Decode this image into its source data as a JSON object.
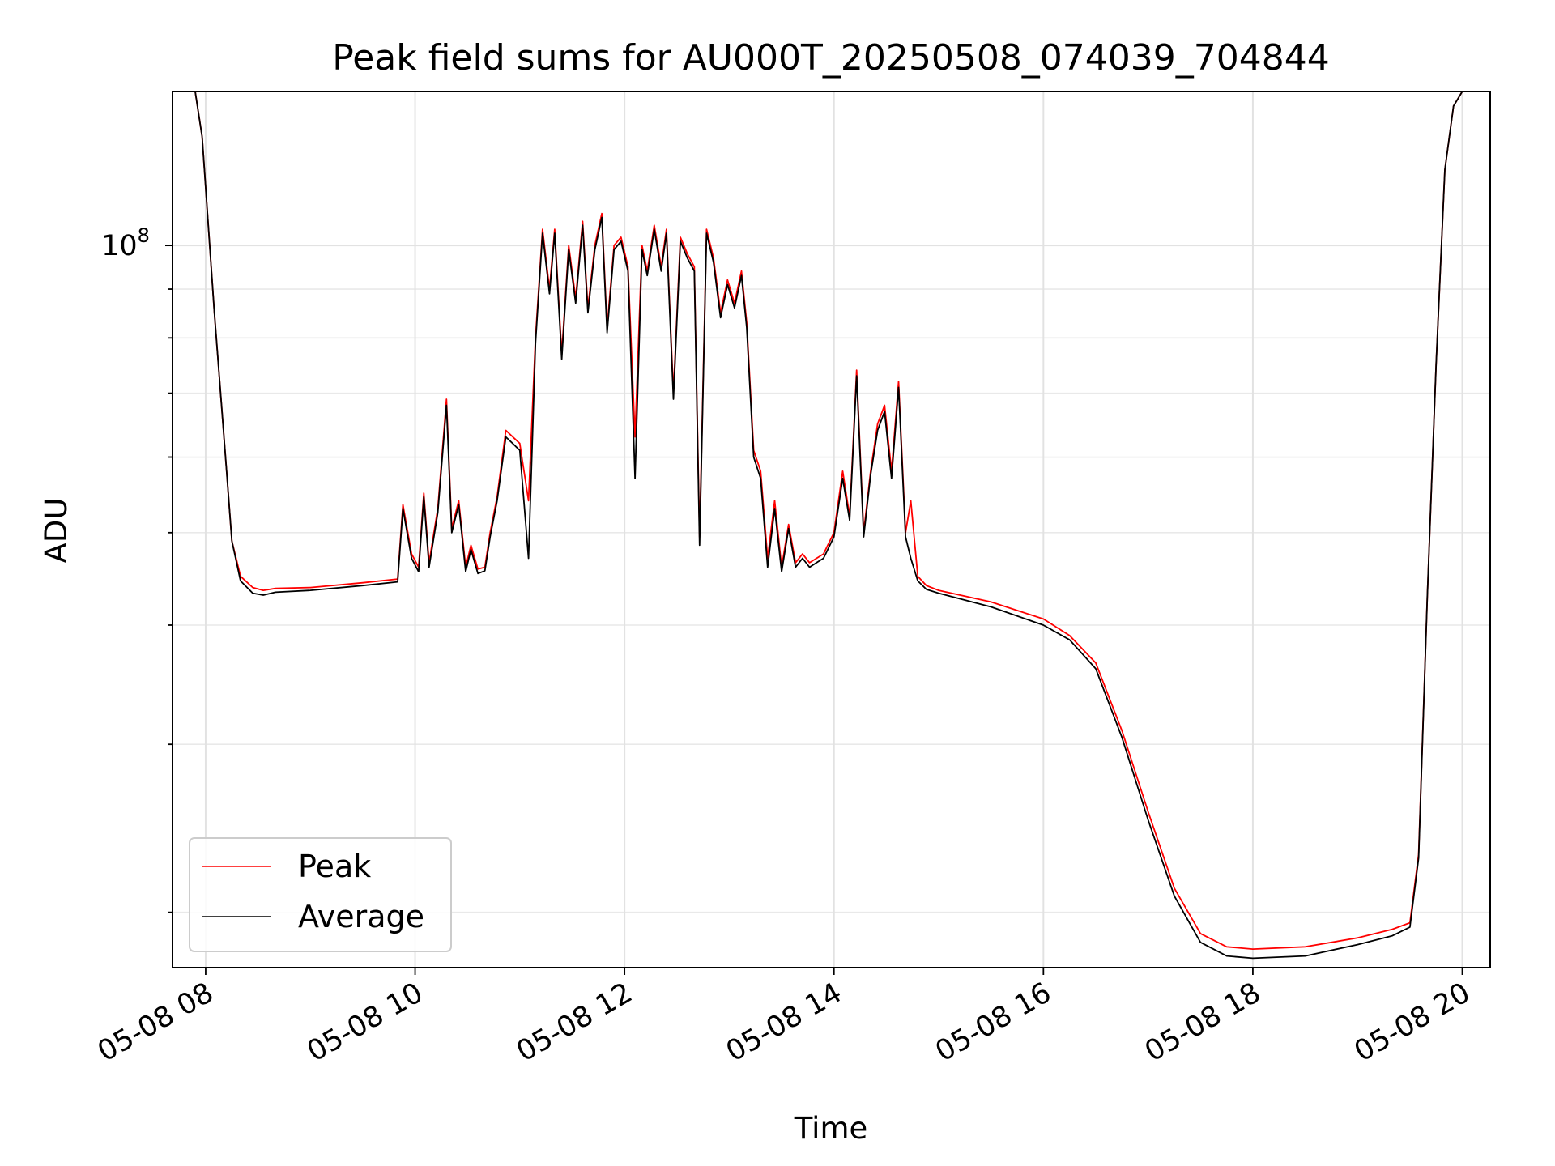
{
  "chart_data": {
    "type": "line",
    "title": "Peak field sums for AU000T_20250508_074039_704844",
    "xlabel": "Time",
    "ylabel": "ADU",
    "y_scale": "log",
    "ylim": [
      17500000,
      145000000
    ],
    "xlim": [
      "2025-05-08 07:41",
      "2025-05-08 20:16"
    ],
    "x_ticks": [
      {
        "t": "2025-05-08 08:00",
        "label": "05-08 08"
      },
      {
        "t": "2025-05-08 10:00",
        "label": "05-08 10"
      },
      {
        "t": "2025-05-08 12:00",
        "label": "05-08 12"
      },
      {
        "t": "2025-05-08 14:00",
        "label": "05-08 14"
      },
      {
        "t": "2025-05-08 16:00",
        "label": "05-08 16"
      },
      {
        "t": "2025-05-08 18:00",
        "label": "05-08 18"
      },
      {
        "t": "2025-05-08 20:00",
        "label": "05-08 20"
      }
    ],
    "y_major_ticks": [
      {
        "value": 100000000,
        "base": "10",
        "exponent": "8"
      }
    ],
    "y_minor_ticks": [
      20000000,
      30000000,
      40000000,
      50000000,
      60000000,
      70000000,
      80000000,
      90000000,
      200000000
    ],
    "grid": true,
    "legend": {
      "position": "lower-left"
    },
    "series": [
      {
        "name": "Peak",
        "color": "#ff0000",
        "x": [
          "2025-05-08 07:41",
          "2025-05-08 07:54",
          "2025-05-08 07:58",
          "2025-05-08 08:05",
          "2025-05-08 08:12",
          "2025-05-08 08:15",
          "2025-05-08 08:20",
          "2025-05-08 08:27",
          "2025-05-08 08:33",
          "2025-05-08 08:40",
          "2025-05-08 09:00",
          "2025-05-08 09:30",
          "2025-05-08 09:50",
          "2025-05-08 09:53",
          "2025-05-08 09:58",
          "2025-05-08 10:02",
          "2025-05-08 10:05",
          "2025-05-08 10:08",
          "2025-05-08 10:13",
          "2025-05-08 10:18",
          "2025-05-08 10:21",
          "2025-05-08 10:25",
          "2025-05-08 10:29",
          "2025-05-08 10:32",
          "2025-05-08 10:36",
          "2025-05-08 10:40",
          "2025-05-08 10:43",
          "2025-05-08 10:47",
          "2025-05-08 10:52",
          "2025-05-08 11:00",
          "2025-05-08 11:05",
          "2025-05-08 11:09",
          "2025-05-08 11:13",
          "2025-05-08 11:17",
          "2025-05-08 11:20",
          "2025-05-08 11:24",
          "2025-05-08 11:28",
          "2025-05-08 11:32",
          "2025-05-08 11:36",
          "2025-05-08 11:39",
          "2025-05-08 11:43",
          "2025-05-08 11:47",
          "2025-05-08 11:50",
          "2025-05-08 11:54",
          "2025-05-08 11:58",
          "2025-05-08 12:02",
          "2025-05-08 12:06",
          "2025-05-08 12:10",
          "2025-05-08 12:13",
          "2025-05-08 12:17",
          "2025-05-08 12:21",
          "2025-05-08 12:24",
          "2025-05-08 12:28",
          "2025-05-08 12:32",
          "2025-05-08 12:36",
          "2025-05-08 12:40",
          "2025-05-08 12:43",
          "2025-05-08 12:47",
          "2025-05-08 12:51",
          "2025-05-08 12:55",
          "2025-05-08 12:59",
          "2025-05-08 13:03",
          "2025-05-08 13:07",
          "2025-05-08 13:10",
          "2025-05-08 13:14",
          "2025-05-08 13:18",
          "2025-05-08 13:22",
          "2025-05-08 13:26",
          "2025-05-08 13:30",
          "2025-05-08 13:34",
          "2025-05-08 13:38",
          "2025-05-08 13:42",
          "2025-05-08 13:46",
          "2025-05-08 13:50",
          "2025-05-08 13:54",
          "2025-05-08 14:00",
          "2025-05-08 14:05",
          "2025-05-08 14:09",
          "2025-05-08 14:13",
          "2025-05-08 14:17",
          "2025-05-08 14:21",
          "2025-05-08 14:25",
          "2025-05-08 14:29",
          "2025-05-08 14:33",
          "2025-05-08 14:37",
          "2025-05-08 14:41",
          "2025-05-08 14:44",
          "2025-05-08 14:48",
          "2025-05-08 14:53",
          "2025-05-08 15:00",
          "2025-05-08 15:30",
          "2025-05-08 16:00",
          "2025-05-08 16:15",
          "2025-05-08 16:30",
          "2025-05-08 16:45",
          "2025-05-08 17:00",
          "2025-05-08 17:15",
          "2025-05-08 17:30",
          "2025-05-08 17:45",
          "2025-05-08 18:00",
          "2025-05-08 18:30",
          "2025-05-08 19:00",
          "2025-05-08 19:20",
          "2025-05-08 19:30",
          "2025-05-08 19:35",
          "2025-05-08 19:40",
          "2025-05-08 19:45",
          "2025-05-08 19:50",
          "2025-05-08 19:55",
          "2025-05-08 20:00",
          "2025-05-08 20:05",
          "2025-05-08 20:16"
        ],
        "y": [
          145000000,
          145000000,
          130000000,
          85000000,
          58000000,
          49000000,
          45000000,
          43800000,
          43500000,
          43700000,
          43800000,
          44300000,
          44700000,
          53500000,
          47500000,
          46000000,
          55000000,
          46500000,
          53000000,
          69000000,
          50500000,
          54000000,
          46000000,
          48500000,
          45800000,
          46000000,
          50000000,
          54500000,
          64000000,
          62000000,
          54000000,
          80000000,
          104000000,
          90000000,
          104000000,
          77000000,
          100000000,
          88000000,
          106000000,
          86000000,
          100000000,
          108000000,
          82000000,
          100000000,
          102000000,
          95000000,
          63000000,
          100000000,
          94000000,
          105000000,
          95000000,
          104000000,
          70000000,
          102000000,
          98000000,
          95000000,
          49500000,
          104000000,
          97000000,
          85000000,
          92000000,
          87000000,
          94000000,
          83000000,
          61000000,
          58000000,
          47000000,
          54000000,
          46000000,
          51000000,
          46500000,
          47500000,
          46500000,
          47000000,
          47500000,
          50000000,
          58000000,
          52000000,
          74000000,
          50000000,
          58000000,
          65000000,
          68000000,
          58000000,
          72000000,
          50000000,
          54000000,
          45000000,
          44000000,
          43500000,
          42300000,
          40600000,
          39000000,
          36500000,
          31000000,
          25500000,
          21200000,
          19000000,
          18400000,
          18300000,
          18400000,
          18800000,
          19200000,
          19500000,
          23000000,
          43000000,
          75000000,
          120000000,
          140000000,
          145000000,
          145000000,
          145000000
        ]
      },
      {
        "name": "Average",
        "color": "#000000",
        "x": [
          "2025-05-08 07:41",
          "2025-05-08 07:54",
          "2025-05-08 07:58",
          "2025-05-08 08:05",
          "2025-05-08 08:12",
          "2025-05-08 08:15",
          "2025-05-08 08:20",
          "2025-05-08 08:27",
          "2025-05-08 08:33",
          "2025-05-08 08:40",
          "2025-05-08 09:00",
          "2025-05-08 09:30",
          "2025-05-08 09:50",
          "2025-05-08 09:53",
          "2025-05-08 09:58",
          "2025-05-08 10:02",
          "2025-05-08 10:05",
          "2025-05-08 10:08",
          "2025-05-08 10:13",
          "2025-05-08 10:18",
          "2025-05-08 10:21",
          "2025-05-08 10:25",
          "2025-05-08 10:29",
          "2025-05-08 10:32",
          "2025-05-08 10:36",
          "2025-05-08 10:40",
          "2025-05-08 10:43",
          "2025-05-08 10:47",
          "2025-05-08 10:52",
          "2025-05-08 11:00",
          "2025-05-08 11:05",
          "2025-05-08 11:09",
          "2025-05-08 11:13",
          "2025-05-08 11:17",
          "2025-05-08 11:20",
          "2025-05-08 11:24",
          "2025-05-08 11:28",
          "2025-05-08 11:32",
          "2025-05-08 11:36",
          "2025-05-08 11:39",
          "2025-05-08 11:43",
          "2025-05-08 11:47",
          "2025-05-08 11:50",
          "2025-05-08 11:54",
          "2025-05-08 11:58",
          "2025-05-08 12:02",
          "2025-05-08 12:06",
          "2025-05-08 12:10",
          "2025-05-08 12:13",
          "2025-05-08 12:17",
          "2025-05-08 12:21",
          "2025-05-08 12:24",
          "2025-05-08 12:28",
          "2025-05-08 12:32",
          "2025-05-08 12:36",
          "2025-05-08 12:40",
          "2025-05-08 12:43",
          "2025-05-08 12:47",
          "2025-05-08 12:51",
          "2025-05-08 12:55",
          "2025-05-08 12:59",
          "2025-05-08 13:03",
          "2025-05-08 13:07",
          "2025-05-08 13:10",
          "2025-05-08 13:14",
          "2025-05-08 13:18",
          "2025-05-08 13:22",
          "2025-05-08 13:26",
          "2025-05-08 13:30",
          "2025-05-08 13:34",
          "2025-05-08 13:38",
          "2025-05-08 13:42",
          "2025-05-08 13:46",
          "2025-05-08 13:50",
          "2025-05-08 13:54",
          "2025-05-08 14:00",
          "2025-05-08 14:05",
          "2025-05-08 14:09",
          "2025-05-08 14:13",
          "2025-05-08 14:17",
          "2025-05-08 14:21",
          "2025-05-08 14:25",
          "2025-05-08 14:29",
          "2025-05-08 14:33",
          "2025-05-08 14:37",
          "2025-05-08 14:41",
          "2025-05-08 14:44",
          "2025-05-08 14:48",
          "2025-05-08 14:53",
          "2025-05-08 15:00",
          "2025-05-08 15:30",
          "2025-05-08 16:00",
          "2025-05-08 16:15",
          "2025-05-08 16:30",
          "2025-05-08 16:45",
          "2025-05-08 17:00",
          "2025-05-08 17:15",
          "2025-05-08 17:30",
          "2025-05-08 17:45",
          "2025-05-08 18:00",
          "2025-05-08 18:30",
          "2025-05-08 19:00",
          "2025-05-08 19:20",
          "2025-05-08 19:30",
          "2025-05-08 19:35",
          "2025-05-08 19:40",
          "2025-05-08 19:45",
          "2025-05-08 19:50",
          "2025-05-08 19:55",
          "2025-05-08 20:00",
          "2025-05-08 20:05",
          "2025-05-08 20:16"
        ],
        "y": [
          145000000,
          145000000,
          130000000,
          85000000,
          58000000,
          49000000,
          44500000,
          43200000,
          43000000,
          43300000,
          43500000,
          44000000,
          44400000,
          53000000,
          47000000,
          45500000,
          54500000,
          46000000,
          52500000,
          68000000,
          50000000,
          53500000,
          45500000,
          48000000,
          45300000,
          45600000,
          49500000,
          54000000,
          63000000,
          61000000,
          47000000,
          79000000,
          103000000,
          89000000,
          103000000,
          76000000,
          99000000,
          87000000,
          105000000,
          85000000,
          99000000,
          107000000,
          81000000,
          99000000,
          101000000,
          94000000,
          57000000,
          99000000,
          93000000,
          104000000,
          94000000,
          103000000,
          69000000,
          101000000,
          97000000,
          94000000,
          48500000,
          103000000,
          96000000,
          84000000,
          91000000,
          86000000,
          93000000,
          82000000,
          60000000,
          57000000,
          46000000,
          53000000,
          45500000,
          50500000,
          46000000,
          47000000,
          46000000,
          46500000,
          47000000,
          49500000,
          57000000,
          51500000,
          73000000,
          49500000,
          57500000,
          64000000,
          67000000,
          57000000,
          71000000,
          49500000,
          47000000,
          44500000,
          43600000,
          43200000,
          41800000,
          40000000,
          38600000,
          36000000,
          30500000,
          25000000,
          20800000,
          18600000,
          18000000,
          17900000,
          18000000,
          18500000,
          18900000,
          19300000,
          22800000,
          43000000,
          75000000,
          120000000,
          140000000,
          145000000,
          145000000,
          145000000
        ]
      }
    ]
  }
}
